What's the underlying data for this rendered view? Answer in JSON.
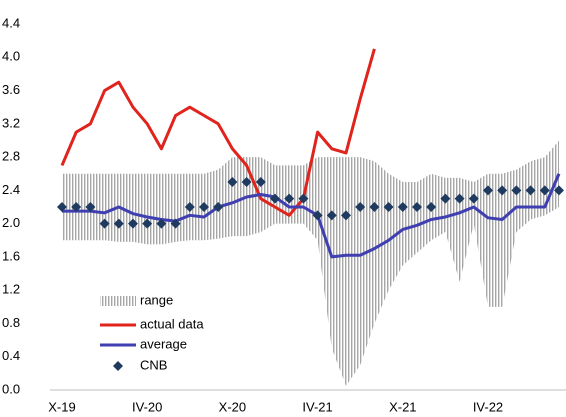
{
  "chart_data": {
    "type": "line",
    "categories": [
      "X-19",
      null,
      null,
      null,
      null,
      null,
      "IV-20",
      null,
      null,
      null,
      null,
      null,
      "X-20",
      null,
      null,
      null,
      null,
      null,
      "IV-21",
      null,
      null,
      null,
      null,
      null,
      "X-21",
      null,
      null,
      null,
      null,
      null,
      "IV-22",
      null,
      null,
      null,
      null,
      null
    ],
    "ylim": [
      0,
      4.4
    ],
    "yticks": [
      {
        "value": 0,
        "label": "0.0"
      },
      0.4,
      0.8,
      1.2,
      1.6,
      {
        "value": 2,
        "label": "2.0"
      },
      2.4,
      2.8,
      3.2,
      3.6,
      {
        "value": 4,
        "label": "4.0"
      },
      4.4
    ],
    "grid": false,
    "legend": "lower left",
    "range": {
      "name": "range",
      "color": "#a6a6a6",
      "low": [
        1.8,
        1.8,
        1.8,
        1.8,
        1.78,
        1.78,
        1.75,
        1.75,
        1.78,
        1.8,
        1.8,
        1.82,
        1.85,
        1.85,
        1.9,
        2.0,
        2.0,
        2.0,
        1.8,
        0.5,
        0.05,
        0.3,
        0.8,
        1.2,
        1.5,
        1.65,
        1.8,
        1.9,
        1.3,
        2.0,
        1.0,
        1.0,
        1.9,
        2.05,
        2.1,
        2.2
      ],
      "high": [
        2.6,
        2.6,
        2.6,
        2.6,
        2.6,
        2.6,
        2.6,
        2.6,
        2.6,
        2.6,
        2.6,
        2.65,
        2.8,
        2.8,
        2.8,
        2.7,
        2.7,
        2.7,
        2.8,
        2.8,
        2.8,
        2.8,
        2.75,
        2.6,
        2.5,
        2.5,
        2.6,
        2.55,
        2.55,
        2.5,
        2.6,
        2.6,
        2.65,
        2.75,
        2.8,
        3.0
      ]
    },
    "series": [
      {
        "name": "actual data",
        "color": "#e0231c",
        "values": [
          2.7,
          3.1,
          3.2,
          3.6,
          3.7,
          3.4,
          3.2,
          2.9,
          3.3,
          3.4,
          3.3,
          3.2,
          2.9,
          2.7,
          2.3,
          2.2,
          2.1,
          2.3,
          3.1,
          2.9,
          2.85,
          3.5,
          4.1,
          null,
          null,
          null,
          null,
          null,
          null,
          null,
          null,
          null,
          null,
          null,
          null,
          null
        ]
      },
      {
        "name": "average",
        "color": "#3f3fb2",
        "values": [
          2.15,
          2.15,
          2.15,
          2.13,
          2.2,
          2.12,
          2.08,
          2.05,
          2.03,
          2.1,
          2.08,
          2.2,
          2.25,
          2.32,
          2.35,
          2.32,
          2.2,
          2.2,
          2.1,
          1.6,
          1.62,
          1.62,
          1.7,
          1.8,
          1.93,
          1.98,
          2.05,
          2.08,
          2.13,
          2.2,
          2.07,
          2.05,
          2.2,
          2.2,
          2.2,
          2.6
        ]
      },
      {
        "name": "CNB",
        "color": "#1f3a5f",
        "marker": "diamond",
        "values": [
          2.2,
          2.2,
          2.2,
          2.0,
          2.0,
          2.0,
          2.0,
          2.0,
          2.0,
          2.2,
          2.2,
          2.2,
          2.5,
          2.5,
          2.5,
          2.3,
          2.3,
          2.3,
          2.1,
          2.1,
          2.1,
          2.2,
          2.2,
          2.2,
          2.2,
          2.2,
          2.2,
          2.3,
          2.3,
          2.3,
          2.4,
          2.4,
          2.4,
          2.4,
          2.4,
          2.4
        ]
      }
    ]
  }
}
